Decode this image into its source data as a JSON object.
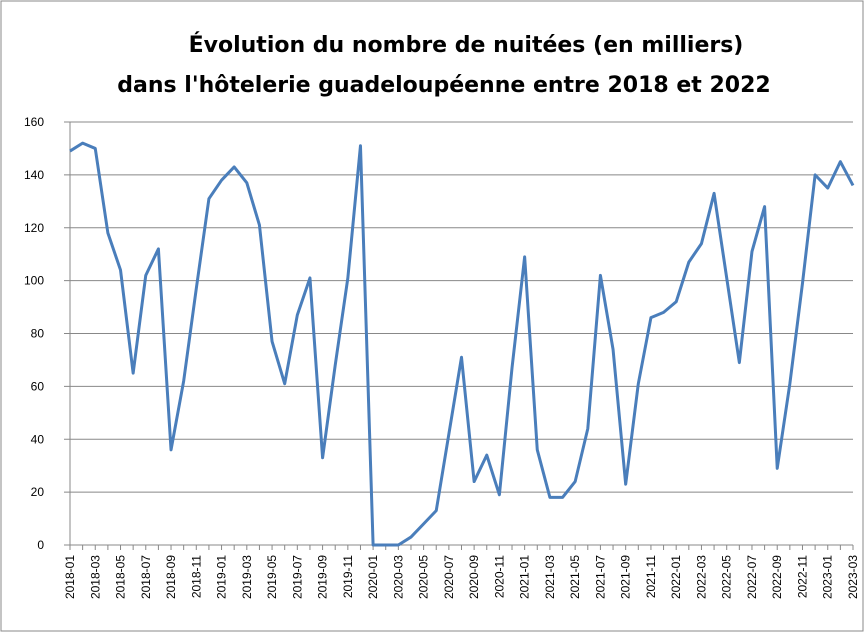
{
  "chart_data": {
    "type": "line",
    "title": [
      "Évolution du nombre de nuitées (en milliers)",
      "dans l'hôtelerie guadeloupéenne entre 2018 et 2022"
    ],
    "categories": [
      "2018-01",
      null,
      "2018-03",
      null,
      "2018-05",
      null,
      "2018-07",
      null,
      "2018-09",
      null,
      "2018-11",
      null,
      "2019-01",
      null,
      "2019-03",
      null,
      "2019-05",
      null,
      "2019-07",
      null,
      "2019-09",
      null,
      "2019-11",
      null,
      "2020-01",
      null,
      "2020-03",
      null,
      "2020-05",
      null,
      "2020-07",
      null,
      "2020-09",
      null,
      "2020-11",
      null,
      "2021-01",
      null,
      "2021-03",
      null,
      "2021-05",
      null,
      "2021-07",
      null,
      "2021-09",
      null,
      "2021-11",
      null,
      "2022-01",
      null,
      "2022-03",
      null,
      "2022-05",
      null,
      "2022-07",
      null,
      "2022-09",
      null,
      "2022-11",
      null,
      "2023-01",
      null,
      "2023-03"
    ],
    "series": [
      {
        "color": "#4a7ebb",
        "values": [
          149,
          152,
          150,
          118,
          104,
          65,
          102,
          112,
          36,
          62,
          97,
          131,
          138,
          143,
          137,
          121,
          77,
          61,
          87,
          101,
          33,
          68,
          101,
          151,
          0,
          0,
          0,
          3,
          8,
          13,
          42,
          71,
          24,
          34,
          19,
          67,
          109,
          36,
          18,
          18,
          24,
          44,
          102,
          74,
          23,
          61,
          86,
          88,
          92,
          107,
          114,
          133,
          101,
          69,
          111,
          128,
          29,
          61,
          99,
          140,
          135,
          145,
          136
        ]
      }
    ],
    "ylim": [
      0,
      160
    ],
    "yticks": [
      0,
      20,
      40,
      60,
      80,
      100,
      120,
      140,
      160
    ],
    "grid": true
  }
}
